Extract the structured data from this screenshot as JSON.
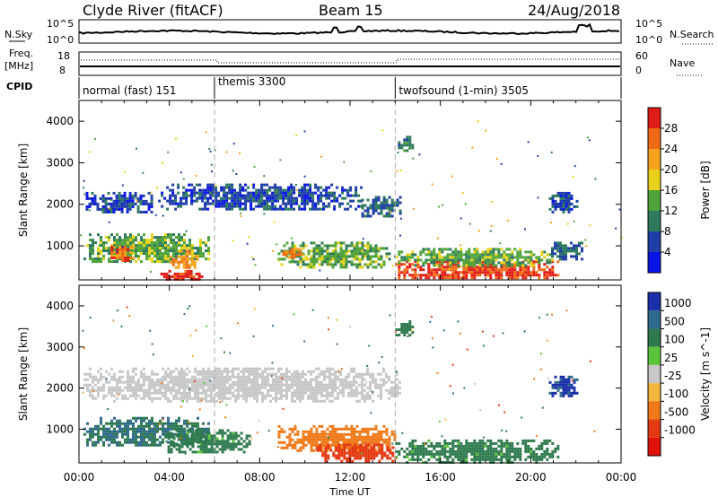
{
  "header": {
    "station_title": "Clyde River (fitACF)",
    "beam_title": "Beam 15",
    "date_title": "24/Aug/2018"
  },
  "noise_panel": {
    "left_label": "N.Sky",
    "left_ticks": [
      "10^5",
      "10^0"
    ],
    "right_label": "N.Search",
    "right_ticks": [
      "10^5",
      "10^0"
    ]
  },
  "freq_panel": {
    "left_label_line1": "Freq.",
    "left_label_line2": "[MHz]",
    "left_ticks": [
      "18",
      "8"
    ],
    "right_label": "Nave",
    "right_ticks": [
      "60",
      "0"
    ]
  },
  "cpid_panel": {
    "label": "CPID",
    "modes": [
      {
        "name": "normal (fast) 151",
        "start_hour": 0
      },
      {
        "name": "themis 3300",
        "start_hour": 6
      },
      {
        "name": "twofsound (1-min) 3505",
        "start_hour": 14
      }
    ]
  },
  "x_axis": {
    "label": "Time UT",
    "ticks": [
      "00:00",
      "04:00",
      "08:00",
      "12:00",
      "16:00",
      "20:00",
      "00:00"
    ],
    "range_hours": [
      0,
      24
    ]
  },
  "colors": {
    "power_scale": [
      "#0a14e6",
      "#1f3fa6",
      "#2e7a5c",
      "#4fa33a",
      "#e8d21c",
      "#f7a21c",
      "#f06a16",
      "#e11b16"
    ],
    "velocity_scale": [
      "#1a2fa8",
      "#2f6a8c",
      "#2e7a4e",
      "#5ac43a",
      "#c8c8c8",
      "#f5b63c",
      "#f07a1a",
      "#e43a14",
      "#e1120c"
    ]
  },
  "chart_data": [
    {
      "type": "heatmap",
      "title": "Power",
      "xlabel": "Time UT",
      "ylabel": "Slant Range [km]",
      "y_ticks": [
        "1000",
        "2000",
        "3000",
        "4000"
      ],
      "xlim": [
        0,
        24
      ],
      "ylim": [
        180,
        4500
      ],
      "colorbar_label": "Power [dB]",
      "colorbar_ticks": [
        "4",
        "8",
        "12",
        "16",
        "20",
        "24",
        "28"
      ],
      "colorbar_range": [
        0,
        32
      ],
      "regions": [
        {
          "t0": 0.3,
          "t1": 3.2,
          "r0": 1800,
          "r1": 2300,
          "value": 6
        },
        {
          "t0": 3.5,
          "t1": 12.5,
          "r0": 1900,
          "r1": 2500,
          "value": 6
        },
        {
          "t0": 12.5,
          "t1": 14.2,
          "r0": 1700,
          "r1": 2200,
          "value": 8
        },
        {
          "t0": 0.2,
          "t1": 5.8,
          "r0": 600,
          "r1": 1300,
          "value": 14
        },
        {
          "t0": 1.4,
          "t1": 2.4,
          "r0": 650,
          "r1": 1000,
          "value": 26
        },
        {
          "t0": 4.0,
          "t1": 5.2,
          "r0": 500,
          "r1": 900,
          "value": 24
        },
        {
          "t0": 3.6,
          "t1": 5.5,
          "r0": 200,
          "r1": 420,
          "value": 30
        },
        {
          "t0": 8.8,
          "t1": 13.8,
          "r0": 500,
          "r1": 1100,
          "value": 14
        },
        {
          "t0": 9.0,
          "t1": 10.0,
          "r0": 700,
          "r1": 950,
          "value": 24
        },
        {
          "t0": 14.0,
          "t1": 21.2,
          "r0": 200,
          "r1": 650,
          "value": 28
        },
        {
          "t0": 14.0,
          "t1": 21.0,
          "r0": 550,
          "r1": 950,
          "value": 14
        },
        {
          "t0": 14.0,
          "t1": 14.8,
          "r0": 3300,
          "r1": 3650,
          "value": 10
        },
        {
          "t0": 20.8,
          "t1": 22.0,
          "r0": 1800,
          "r1": 2300,
          "value": 6
        },
        {
          "t0": 20.9,
          "t1": 22.3,
          "r0": 700,
          "r1": 1100,
          "value": 8
        }
      ]
    },
    {
      "type": "heatmap",
      "title": "Velocity",
      "xlabel": "Time UT",
      "ylabel": "Slant Range [km]",
      "y_ticks": [
        "1000",
        "2000",
        "3000",
        "4000"
      ],
      "xlim": [
        0,
        24
      ],
      "ylim": [
        180,
        4500
      ],
      "colorbar_label": "Velocity [m s^-1]",
      "colorbar_ticks": [
        "1000",
        "500",
        "100",
        "25",
        "-25",
        "-100",
        "-500",
        "-1000"
      ],
      "regions": [
        {
          "t0": 0.2,
          "t1": 14.2,
          "r0": 1700,
          "r1": 2500,
          "value": 0
        },
        {
          "t0": 0.2,
          "t1": 5.8,
          "r0": 600,
          "r1": 1300,
          "value": 300
        },
        {
          "t0": 3.8,
          "t1": 7.5,
          "r0": 450,
          "r1": 1000,
          "value": 100
        },
        {
          "t0": 8.8,
          "t1": 14.0,
          "r0": 500,
          "r1": 1100,
          "value": -200
        },
        {
          "t0": 10.5,
          "t1": 14.0,
          "r0": 250,
          "r1": 650,
          "value": -500
        },
        {
          "t0": 14.0,
          "t1": 21.2,
          "r0": 200,
          "r1": 750,
          "value": 100
        },
        {
          "t0": 20.8,
          "t1": 22.1,
          "r0": 1800,
          "r1": 2300,
          "value": 800
        },
        {
          "t0": 14.0,
          "t1": 14.8,
          "r0": 3300,
          "r1": 3650,
          "value": 200
        }
      ]
    }
  ]
}
